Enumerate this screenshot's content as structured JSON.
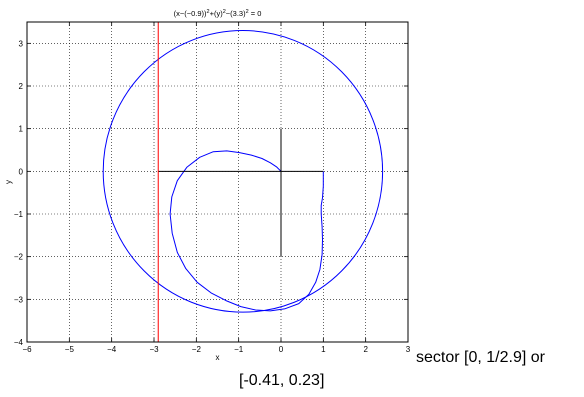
{
  "chart_data": {
    "type": "line",
    "title": {
      "parts": [
        "(x−(−0.9))",
        "2",
        "+(y)",
        "2",
        "−(3.3)",
        "2",
        " = 0"
      ]
    },
    "xlabel": "x",
    "ylabel": "y",
    "xlim": [
      -6,
      3
    ],
    "ylim": [
      -4,
      3.5
    ],
    "xticks": [
      -6,
      -5,
      -4,
      -3,
      -2,
      -1,
      0,
      1,
      2,
      3
    ],
    "yticks": [
      -4,
      -3,
      -2,
      -1,
      0,
      1,
      2,
      3
    ],
    "xticklabels": [
      "−6",
      "−5",
      "−4",
      "−3",
      "−2",
      "−1",
      "0",
      "1",
      "2",
      "3"
    ],
    "yticklabels": [
      "−4",
      "−3",
      "−2",
      "−1",
      "0",
      "1",
      "2",
      "3"
    ],
    "grid": true,
    "circle": {
      "cx": -0.9,
      "cy": 0,
      "r": 3.3,
      "color": "#0000ff"
    },
    "spiral_curve": {
      "color": "#0000ff",
      "x": [
        1.0,
        1.0,
        0.98,
        0.95,
        0.95,
        0.97,
        0.98,
        0.97,
        0.92,
        0.82,
        0.66,
        0.42,
        0.1,
        -0.25,
        -0.6,
        -0.95,
        -1.3,
        -1.65,
        -1.98,
        -2.25,
        -2.45,
        -2.57,
        -2.62,
        -2.58,
        -2.45,
        -2.22,
        -1.92,
        -1.6,
        -1.28,
        -0.98,
        -0.7,
        -0.45,
        -0.25,
        -0.1,
        0.0
      ],
      "y": [
        0.0,
        -0.35,
        -0.62,
        -0.8,
        -1.0,
        -1.3,
        -1.6,
        -1.95,
        -2.3,
        -2.6,
        -2.88,
        -3.1,
        -3.22,
        -3.27,
        -3.25,
        -3.17,
        -3.03,
        -2.85,
        -2.6,
        -2.28,
        -1.9,
        -1.45,
        -1.0,
        -0.6,
        -0.22,
        0.1,
        0.33,
        0.46,
        0.48,
        0.44,
        0.38,
        0.3,
        0.2,
        0.1,
        0.0
      ]
    },
    "black_lines": [
      {
        "x": [
          -2.9,
          1.0
        ],
        "y": [
          0.0,
          0.0
        ],
        "color": "#000000"
      },
      {
        "x": [
          0.0,
          0.0
        ],
        "y": [
          -2.0,
          1.0
        ],
        "color": "#000000"
      }
    ],
    "vertical_line": {
      "x": -2.9,
      "color": "#ff0000"
    },
    "annotation": {
      "line1": "sector [0, 1/2.9] or",
      "line2": "[-0.41, 0.23]"
    }
  }
}
